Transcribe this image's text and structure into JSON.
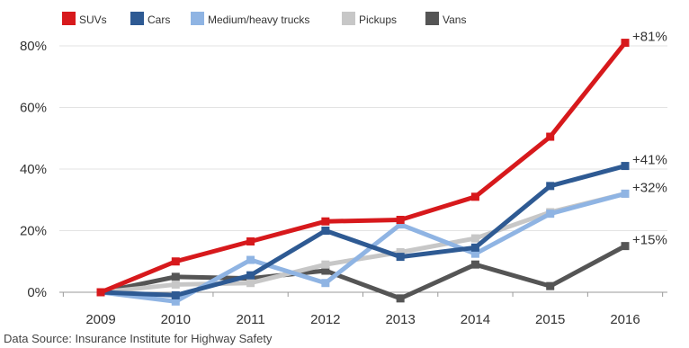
{
  "chart_data": {
    "type": "line",
    "x": [
      "2009",
      "2010",
      "2011",
      "2012",
      "2013",
      "2014",
      "2015",
      "2016"
    ],
    "series": [
      {
        "name": "SUVs",
        "color": "#d7191c",
        "values": [
          0,
          10,
          16.5,
          23,
          23.5,
          31,
          50.5,
          81
        ],
        "end_label": "+81%"
      },
      {
        "name": "Cars",
        "color": "#2e5a93",
        "values": [
          0,
          -1,
          5.5,
          20,
          11.5,
          14.5,
          34.5,
          41
        ],
        "end_label": "+41%"
      },
      {
        "name": "Medium/heavy trucks",
        "color": "#8fb4e3",
        "values": [
          0,
          -3,
          10.5,
          3,
          22,
          12.5,
          25.5,
          32
        ],
        "end_label": "+32%"
      },
      {
        "name": "Pickups",
        "color": "#c7c7c7",
        "values": [
          0,
          2.5,
          3,
          9,
          13,
          17.5,
          26,
          32
        ],
        "end_label": ""
      },
      {
        "name": "Vans",
        "color": "#555555",
        "values": [
          0,
          5,
          4.5,
          7,
          -2,
          9,
          2,
          15
        ],
        "end_label": "+15%"
      }
    ],
    "yticks": [
      "0%",
      "20%",
      "40%",
      "60%",
      "80%"
    ],
    "ytick_values": [
      0,
      20,
      40,
      60,
      80
    ],
    "ylim": [
      -5,
      85
    ],
    "grid": true,
    "legend": "top"
  },
  "source_note": "Data Source: Insurance Institute for Highway Safety"
}
